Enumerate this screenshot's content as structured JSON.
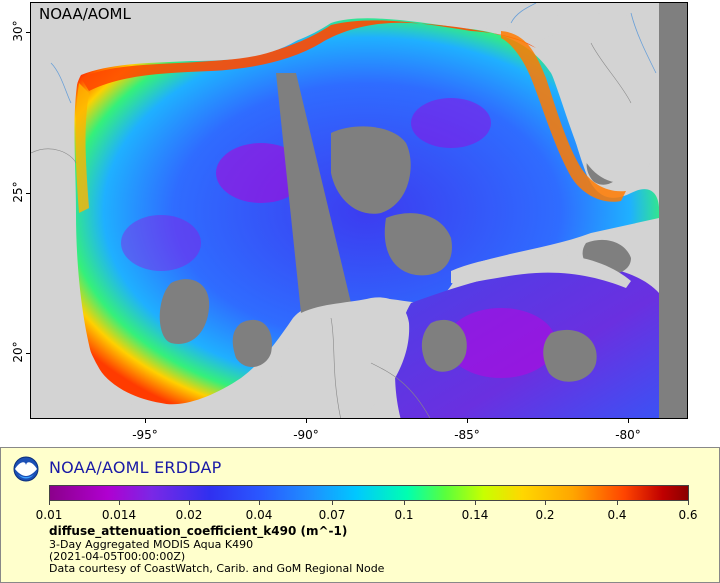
{
  "map": {
    "corner_label": "NOAA/AOML",
    "lat_labels": [
      "30°",
      "25°",
      "20°"
    ],
    "lon_labels": [
      "-95°",
      "-90°",
      "-85°",
      "-80°"
    ]
  },
  "legend": {
    "title": "NOAA/AOML ERDDAP",
    "colorbar_ticks": [
      "0.01",
      "0.014",
      "0.02",
      "0.04",
      "0.07",
      "0.1",
      "0.14",
      "0.2",
      "0.4",
      "0.6"
    ],
    "variable": "diffuse_attenuation_coefficient_k490 (m^-1)",
    "product": "3-Day Aggregated MODIS Aqua K490",
    "time": "(2021-04-05T00:00:00Z)",
    "credit": "Data courtesy of CoastWatch, Carib. and GoM Regional Node"
  },
  "colors": {
    "land": "#d3d3d3",
    "no_data": "#7f7f7f",
    "legend_bg": "#ffffcc",
    "title_blue": "#1a1aa6"
  },
  "icons": {
    "logo": "noaa-logo-icon"
  }
}
